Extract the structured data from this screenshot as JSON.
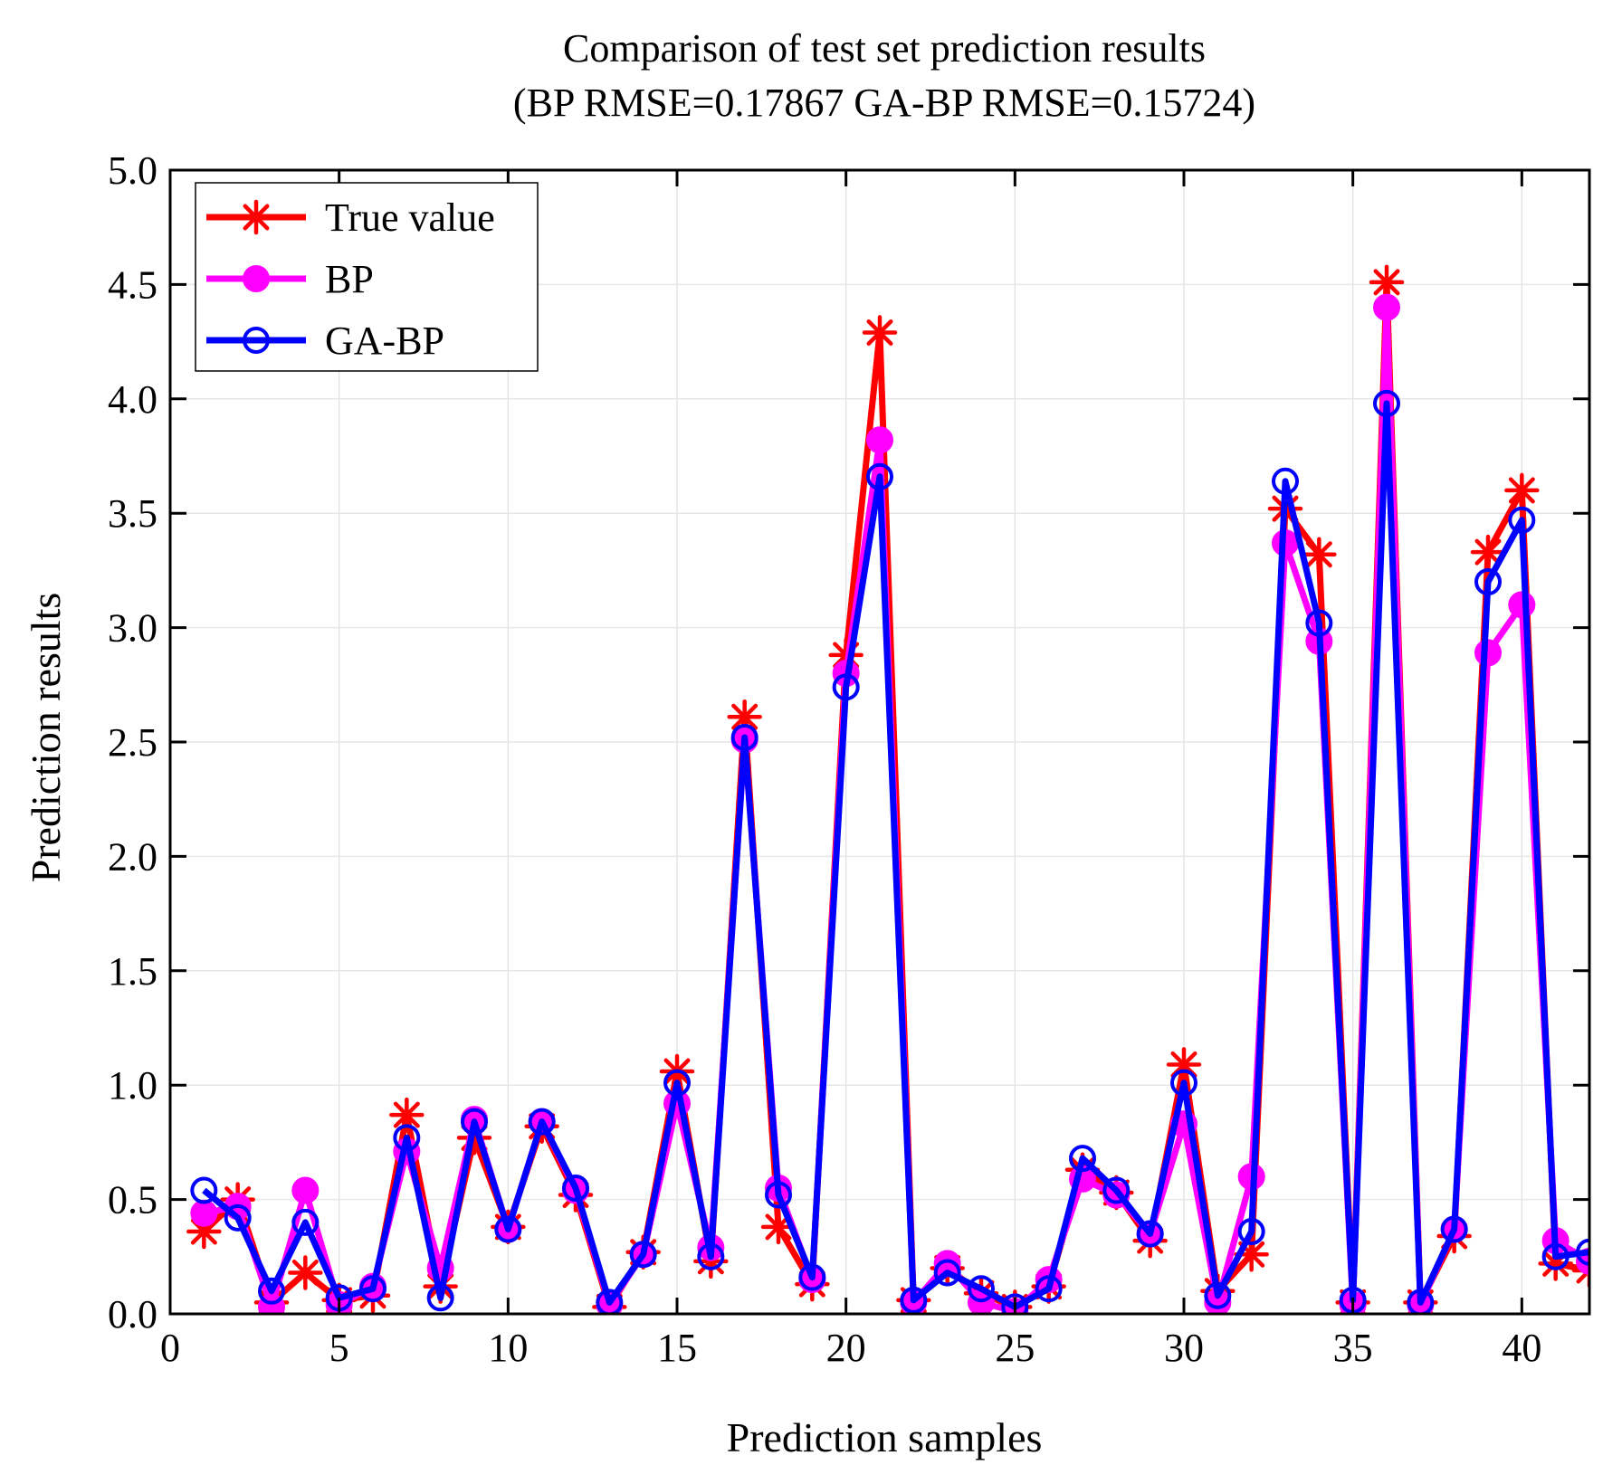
{
  "chart_data": {
    "type": "line",
    "title_line1": "Comparison of test set prediction results",
    "title_line2": "(BP RMSE=0.17867 GA-BP RMSE=0.15724)",
    "xlabel": "Prediction samples",
    "ylabel": "Prediction results",
    "xlim": [
      0,
      42
    ],
    "ylim": [
      0,
      5
    ],
    "xticks": [
      0,
      5,
      10,
      15,
      20,
      25,
      30,
      35,
      40
    ],
    "xtick_labels": [
      "0",
      "5",
      "10",
      "15",
      "20",
      "25",
      "30",
      "35",
      "40"
    ],
    "yticks": [
      0,
      0.5,
      1,
      1.5,
      2,
      2.5,
      3,
      3.5,
      4,
      4.5,
      5
    ],
    "ytick_labels": [
      "0.0",
      "0.5",
      "1.0",
      "1.5",
      "2.0",
      "2.5",
      "3.0",
      "3.5",
      "4.0",
      "4.5",
      "5.0"
    ],
    "grid": true,
    "legend_position": "top-left",
    "x": [
      1,
      2,
      3,
      4,
      5,
      6,
      7,
      8,
      9,
      10,
      11,
      12,
      13,
      14,
      15,
      16,
      17,
      18,
      19,
      20,
      21,
      22,
      23,
      24,
      25,
      26,
      27,
      28,
      29,
      30,
      31,
      32,
      33,
      34,
      35,
      36,
      37,
      38,
      39,
      40,
      41,
      42
    ],
    "series": [
      {
        "name": "True value",
        "color": "#ff0000",
        "marker": "asterisk",
        "values": [
          0.36,
          0.5,
          0.05,
          0.18,
          0.06,
          0.08,
          0.87,
          0.12,
          0.77,
          0.38,
          0.82,
          0.52,
          0.03,
          0.27,
          1.06,
          0.23,
          2.61,
          0.38,
          0.13,
          2.88,
          4.29,
          0.06,
          0.2,
          0.09,
          0.03,
          0.12,
          0.63,
          0.53,
          0.32,
          1.09,
          0.1,
          0.26,
          3.52,
          3.32,
          0.05,
          4.51,
          0.05,
          0.34,
          3.33,
          3.6,
          0.22,
          0.19
        ]
      },
      {
        "name": "BP",
        "color": "#ff00ff",
        "marker": "filled-circle",
        "values": [
          0.44,
          0.47,
          0.03,
          0.54,
          0.04,
          0.12,
          0.71,
          0.2,
          0.85,
          0.37,
          0.84,
          0.54,
          0.04,
          0.26,
          0.92,
          0.29,
          2.51,
          0.55,
          0.15,
          2.8,
          3.82,
          0.05,
          0.22,
          0.05,
          0.01,
          0.15,
          0.59,
          0.52,
          0.35,
          0.83,
          0.05,
          0.6,
          3.37,
          2.94,
          0.04,
          4.4,
          0.04,
          0.37,
          2.89,
          3.1,
          0.32,
          0.23
        ]
      },
      {
        "name": "GA-BP",
        "color": "#0000ff",
        "marker": "open-circle",
        "values": [
          0.54,
          0.42,
          0.1,
          0.4,
          0.07,
          0.11,
          0.77,
          0.07,
          0.84,
          0.37,
          0.84,
          0.55,
          0.05,
          0.26,
          1.01,
          0.25,
          2.52,
          0.52,
          0.16,
          2.74,
          3.66,
          0.06,
          0.18,
          0.11,
          0.03,
          0.11,
          0.68,
          0.54,
          0.35,
          1.01,
          0.08,
          0.36,
          3.64,
          3.02,
          0.06,
          3.98,
          0.05,
          0.37,
          3.2,
          3.47,
          0.25,
          0.27
        ]
      }
    ]
  }
}
